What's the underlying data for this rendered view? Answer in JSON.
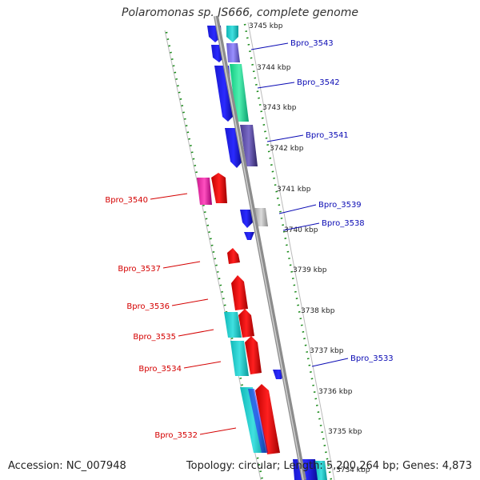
{
  "title": "Polaromonas sp. JS666, complete genome",
  "accession_label": "Accession: NC_007948",
  "summary_label": "Topology: circular; Length: 5,200,264 bp; Genes: 4,873",
  "ticks": [
    "3745 kbp",
    "3744 kbp",
    "3743 kbp",
    "3742 kbp",
    "3741 kbp",
    "3740 kbp",
    "3739 kbp",
    "3738 kbp",
    "3737 kbp",
    "3736 kbp",
    "3735 kbp",
    "3734 kbp"
  ],
  "gene_labels_right": [
    "Bpro_3543",
    "Bpro_3542",
    "Bpro_3541",
    "Bpro_3539",
    "Bpro_3538",
    "Bpro_3533"
  ],
  "gene_labels_left": [
    "Bpro_3540",
    "Bpro_3537",
    "Bpro_3536",
    "Bpro_3535",
    "Bpro_3534",
    "Bpro_3532"
  ],
  "colors": {
    "forward_label": "#0a0ab4",
    "reverse_label": "#d40000",
    "tick_dash": "#1a8a1a",
    "backbone": "#8c8c8c"
  }
}
